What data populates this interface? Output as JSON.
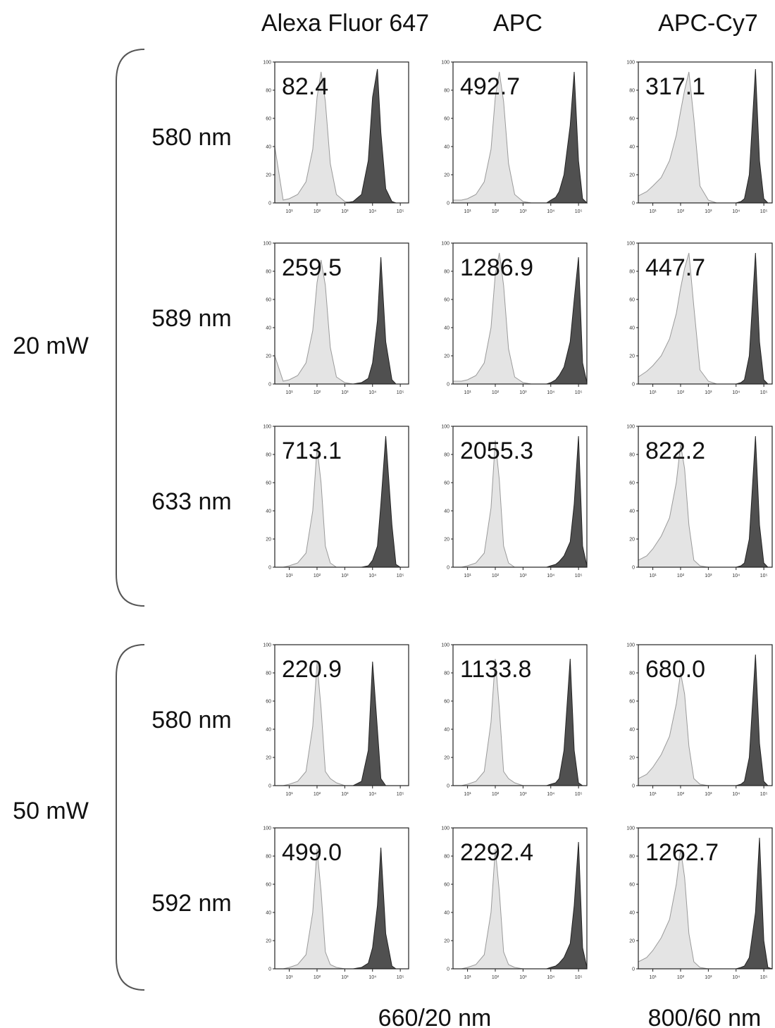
{
  "chart_data": {
    "type": "area",
    "columns": [
      "Alexa Fluor 647",
      "APC",
      "APC-Cy7"
    ],
    "groups": [
      {
        "label": "20 mW",
        "rows": [
          "580 nm",
          "589 nm",
          "633 nm"
        ]
      },
      {
        "label": "50 mW",
        "rows": [
          "580 nm",
          "592 nm"
        ]
      }
    ],
    "xlabels": [
      "660/20 nm",
      "800/60 nm"
    ],
    "log_x": true,
    "xlim": [
      3,
      200000
    ],
    "xticks": [
      {
        "value": 10,
        "label": "10¹"
      },
      {
        "value": 100,
        "label": "10²"
      },
      {
        "value": 1000,
        "label": "10³"
      },
      {
        "value": 10000,
        "label": "10⁴"
      },
      {
        "value": 100000,
        "label": "10⁵"
      }
    ],
    "ylim": [
      0,
      100
    ],
    "yticks": [
      0,
      20,
      40,
      60,
      80,
      100
    ],
    "colors": [
      "#e4e4e4",
      "#505050"
    ],
    "x": [
      3,
      6,
      10,
      20,
      40,
      70,
      100,
      140,
      200,
      300,
      500,
      1000,
      2000,
      4000,
      7000,
      10000,
      15000,
      20000,
      30000,
      50000,
      70000,
      100000,
      140000,
      200000
    ],
    "panels": [
      {
        "annotation": "82.4",
        "series": [
          [
            40,
            2,
            3,
            6,
            15,
            38,
            75,
            93,
            72,
            28,
            6,
            1,
            0,
            0,
            0,
            0,
            0,
            0,
            0,
            0,
            0,
            0,
            0,
            0
          ],
          [
            0,
            0,
            0,
            0,
            0,
            0,
            0,
            0,
            0,
            0,
            0,
            0,
            1,
            6,
            30,
            75,
            95,
            50,
            10,
            1,
            0,
            0,
            0,
            0
          ]
        ]
      },
      {
        "annotation": "492.7",
        "series": [
          [
            2,
            2,
            3,
            6,
            15,
            38,
            75,
            93,
            72,
            28,
            6,
            1,
            0,
            0,
            0,
            0,
            0,
            0,
            0,
            0,
            0,
            0,
            0,
            0
          ],
          [
            0,
            0,
            0,
            0,
            0,
            0,
            0,
            0,
            0,
            0,
            0,
            0,
            0,
            0,
            0,
            2,
            4,
            8,
            20,
            55,
            93,
            30,
            3,
            0
          ]
        ]
      },
      {
        "annotation": "317.1",
        "series": [
          [
            5,
            8,
            12,
            18,
            30,
            48,
            65,
            80,
            93,
            60,
            12,
            2,
            0,
            0,
            0,
            0,
            0,
            0,
            0,
            0,
            0,
            0,
            0,
            0
          ],
          [
            0,
            0,
            0,
            0,
            0,
            0,
            0,
            0,
            0,
            0,
            0,
            0,
            0,
            0,
            0,
            0,
            1,
            3,
            20,
            95,
            30,
            3,
            0,
            0
          ]
        ]
      },
      {
        "annotation": "259.5",
        "series": [
          [
            20,
            2,
            3,
            6,
            15,
            38,
            72,
            88,
            70,
            26,
            5,
            1,
            0,
            0,
            0,
            0,
            0,
            0,
            0,
            0,
            0,
            0,
            0,
            0
          ],
          [
            0,
            0,
            0,
            0,
            0,
            0,
            0,
            0,
            0,
            0,
            0,
            0,
            0,
            1,
            4,
            15,
            45,
            90,
            30,
            3,
            0,
            0,
            0,
            0
          ]
        ]
      },
      {
        "annotation": "1286.9",
        "series": [
          [
            2,
            2,
            3,
            6,
            15,
            40,
            78,
            93,
            70,
            25,
            5,
            1,
            0,
            0,
            0,
            0,
            0,
            0,
            0,
            0,
            0,
            0,
            0,
            0
          ],
          [
            0,
            0,
            0,
            0,
            0,
            0,
            0,
            0,
            0,
            0,
            0,
            0,
            0,
            0,
            0,
            1,
            3,
            6,
            12,
            30,
            60,
            90,
            15,
            1
          ]
        ]
      },
      {
        "annotation": "447.7",
        "series": [
          [
            5,
            9,
            13,
            20,
            32,
            50,
            68,
            82,
            93,
            55,
            10,
            2,
            0,
            0,
            0,
            0,
            0,
            0,
            0,
            0,
            0,
            0,
            0,
            0
          ],
          [
            0,
            0,
            0,
            0,
            0,
            0,
            0,
            0,
            0,
            0,
            0,
            0,
            0,
            0,
            0,
            0,
            1,
            3,
            20,
            93,
            30,
            3,
            0,
            0
          ]
        ]
      },
      {
        "annotation": "713.1",
        "series": [
          [
            0,
            0,
            1,
            3,
            10,
            40,
            85,
            60,
            15,
            3,
            0,
            0,
            0,
            0,
            0,
            0,
            0,
            0,
            0,
            0,
            0,
            0,
            0,
            0
          ],
          [
            0,
            0,
            0,
            0,
            0,
            0,
            0,
            0,
            0,
            0,
            0,
            0,
            0,
            0,
            1,
            5,
            15,
            45,
            93,
            30,
            2,
            0,
            0,
            0
          ]
        ]
      },
      {
        "annotation": "2055.3",
        "series": [
          [
            0,
            0,
            1,
            3,
            10,
            42,
            90,
            62,
            15,
            3,
            0,
            0,
            0,
            0,
            0,
            0,
            0,
            0,
            0,
            0,
            0,
            0,
            0,
            0
          ],
          [
            0,
            0,
            0,
            0,
            0,
            0,
            0,
            0,
            0,
            0,
            0,
            0,
            0,
            0,
            0,
            1,
            2,
            4,
            8,
            18,
            45,
            93,
            15,
            1
          ]
        ]
      },
      {
        "annotation": "822.2",
        "series": [
          [
            5,
            8,
            13,
            22,
            35,
            60,
            87,
            70,
            30,
            5,
            1,
            0,
            0,
            0,
            0,
            0,
            0,
            0,
            0,
            0,
            0,
            0,
            0,
            0
          ],
          [
            0,
            0,
            0,
            0,
            0,
            0,
            0,
            0,
            0,
            0,
            0,
            0,
            0,
            0,
            0,
            0,
            1,
            3,
            20,
            93,
            30,
            3,
            0,
            0
          ]
        ]
      },
      {
        "annotation": "220.9",
        "series": [
          [
            0,
            0,
            1,
            3,
            10,
            42,
            87,
            55,
            10,
            5,
            2,
            0,
            0,
            0,
            0,
            0,
            0,
            0,
            0,
            0,
            0,
            0,
            0,
            0
          ],
          [
            0,
            0,
            0,
            0,
            0,
            0,
            0,
            0,
            0,
            0,
            0,
            0,
            0,
            3,
            25,
            88,
            40,
            5,
            0,
            0,
            0,
            0,
            0,
            0
          ]
        ]
      },
      {
        "annotation": "1133.8",
        "series": [
          [
            0,
            0,
            1,
            3,
            10,
            45,
            90,
            55,
            10,
            5,
            2,
            0,
            0,
            0,
            0,
            0,
            0,
            0,
            0,
            0,
            0,
            0,
            0,
            0
          ],
          [
            0,
            0,
            0,
            0,
            0,
            0,
            0,
            0,
            0,
            0,
            0,
            0,
            0,
            0,
            0,
            1,
            2,
            5,
            25,
            90,
            25,
            2,
            0,
            0
          ]
        ]
      },
      {
        "annotation": "680.0",
        "series": [
          [
            5,
            8,
            13,
            22,
            35,
            58,
            80,
            65,
            28,
            5,
            1,
            0,
            0,
            0,
            0,
            0,
            0,
            0,
            0,
            0,
            0,
            0,
            0,
            0
          ],
          [
            0,
            0,
            0,
            0,
            0,
            0,
            0,
            0,
            0,
            0,
            0,
            0,
            0,
            0,
            0,
            0,
            1,
            3,
            20,
            93,
            30,
            3,
            0,
            0
          ]
        ]
      },
      {
        "annotation": "499.0",
        "series": [
          [
            0,
            0,
            1,
            3,
            10,
            40,
            85,
            55,
            12,
            3,
            1,
            0,
            0,
            0,
            0,
            0,
            0,
            0,
            0,
            0,
            0,
            0,
            0,
            0
          ],
          [
            0,
            0,
            0,
            0,
            0,
            0,
            0,
            0,
            0,
            0,
            0,
            0,
            0,
            1,
            4,
            15,
            45,
            86,
            25,
            2,
            0,
            0,
            0,
            0
          ]
        ]
      },
      {
        "annotation": "2292.4",
        "series": [
          [
            0,
            0,
            1,
            3,
            10,
            40,
            85,
            55,
            12,
            3,
            1,
            0,
            0,
            0,
            0,
            0,
            0,
            0,
            0,
            0,
            0,
            0,
            0,
            0
          ],
          [
            0,
            0,
            0,
            0,
            0,
            0,
            0,
            0,
            0,
            0,
            0,
            0,
            0,
            0,
            0,
            1,
            2,
            4,
            8,
            18,
            45,
            90,
            15,
            1
          ]
        ]
      },
      {
        "annotation": "1262.7",
        "series": [
          [
            5,
            8,
            13,
            22,
            35,
            60,
            85,
            65,
            25,
            5,
            1,
            0,
            0,
            0,
            0,
            0,
            0,
            0,
            0,
            0,
            0,
            0,
            0,
            0
          ],
          [
            0,
            0,
            0,
            0,
            0,
            0,
            0,
            0,
            0,
            0,
            0,
            0,
            0,
            0,
            0,
            0,
            1,
            2,
            8,
            40,
            93,
            20,
            1,
            0
          ]
        ]
      }
    ]
  }
}
